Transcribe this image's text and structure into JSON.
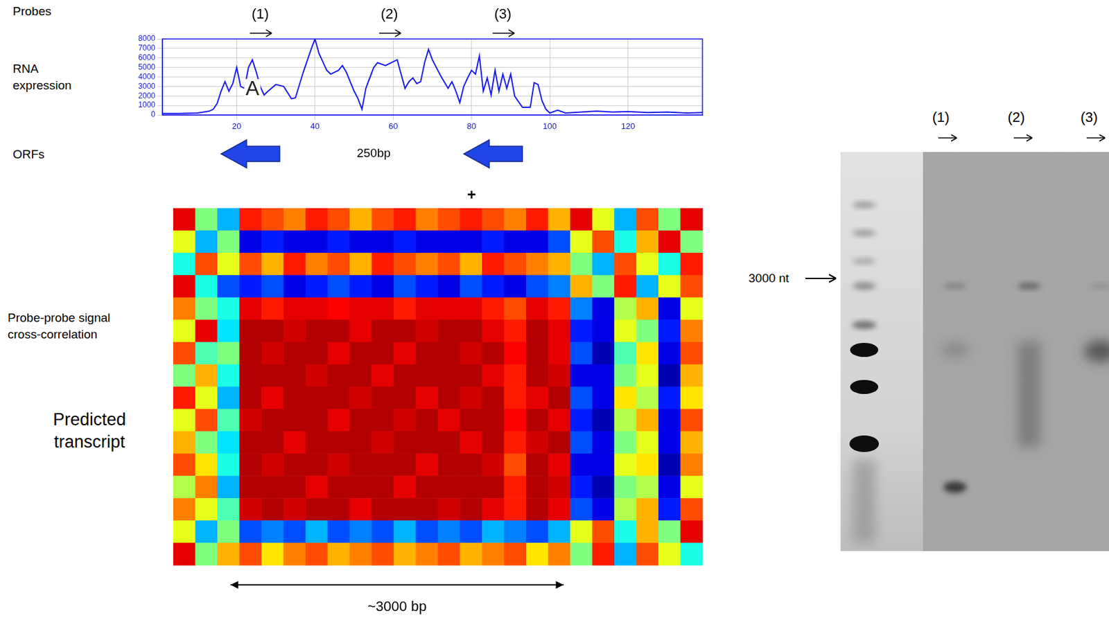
{
  "labels": {
    "probes": "Probes",
    "rna_expression": "RNA expression",
    "orfs": "ORFs",
    "cross_correlation": "Probe-probe signal cross-correlation",
    "predicted_transcript": "Predicted transcript"
  },
  "chart_data": [
    {
      "type": "line",
      "title": "RNA expression",
      "x": [
        1,
        5,
        10,
        13,
        14,
        15,
        16,
        17,
        18,
        19,
        20,
        21,
        22,
        23,
        24,
        25,
        26,
        27,
        28,
        30,
        32,
        34,
        35,
        37,
        39,
        40,
        41,
        43,
        44,
        46,
        47,
        48,
        50,
        51,
        52,
        53,
        55,
        56,
        58,
        60,
        61,
        62,
        63,
        64,
        65,
        66,
        67,
        68,
        69,
        70,
        71,
        72,
        73,
        74,
        75,
        76,
        77,
        78,
        79,
        80,
        81,
        82,
        83,
        84,
        85,
        86,
        87,
        88,
        89,
        90,
        91,
        93,
        95,
        96,
        97,
        98,
        99,
        100,
        102,
        104,
        108,
        112,
        116,
        120,
        125,
        130,
        135,
        139
      ],
      "values": [
        150,
        150,
        200,
        400,
        600,
        1200,
        2500,
        3500,
        2500,
        3300,
        5000,
        3000,
        2800,
        5000,
        5800,
        4500,
        3000,
        2100,
        2500,
        3200,
        3000,
        1700,
        1800,
        4500,
        6900,
        8000,
        6500,
        4700,
        4300,
        4700,
        5200,
        4500,
        2500,
        1700,
        600,
        2800,
        5000,
        5500,
        5200,
        5600,
        5800,
        4300,
        2800,
        3500,
        3900,
        3300,
        3500,
        5500,
        6900,
        5800,
        5000,
        4200,
        3500,
        2800,
        3500,
        2500,
        1300,
        3000,
        3900,
        4700,
        4300,
        6200,
        2500,
        3900,
        2100,
        4700,
        2500,
        4300,
        2800,
        4300,
        2000,
        800,
        800,
        3400,
        3200,
        1500,
        600,
        200,
        500,
        200,
        300,
        400,
        300,
        350,
        250,
        300,
        200,
        250
      ],
      "color": "#1a1aee",
      "xlim": [
        1,
        139
      ],
      "xticks": [
        20,
        40,
        60,
        80,
        100,
        120
      ],
      "ylim": [
        0,
        8000
      ],
      "yticks": [
        0,
        1000,
        2000,
        3000,
        4000,
        5000,
        6000,
        7000,
        8000
      ],
      "grid": true,
      "annotations": [
        {
          "text": "A",
          "x": 24,
          "y": 2700
        }
      ],
      "probes": [
        {
          "label": "(1)",
          "x": 26
        },
        {
          "label": "(2)",
          "x": 59
        },
        {
          "label": "(3)",
          "x": 88
        }
      ],
      "orfs": [
        {
          "start": 31,
          "end": 16
        },
        {
          "start": 93,
          "end": 78
        }
      ],
      "orf_label": {
        "text": "250bp",
        "x": 55
      },
      "marks": [
        {
          "text": "+",
          "x": 80
        }
      ]
    },
    {
      "type": "heatmap",
      "title": "Probe-probe signal cross-correlation",
      "zlim": [
        0,
        1
      ],
      "tick_labels": false,
      "cells": [
        [
          0.9,
          0.5,
          0.3,
          0.85,
          0.8,
          0.75,
          0.85,
          0.8,
          0.7,
          0.8,
          0.85,
          0.75,
          0.8,
          0.85,
          0.8,
          0.75,
          0.85,
          0.7,
          0.9,
          0.6,
          0.3,
          0.8,
          0.5,
          0.9
        ],
        [
          0.6,
          0.3,
          0.5,
          0.1,
          0.15,
          0.1,
          0.1,
          0.15,
          0.1,
          0.1,
          0.15,
          0.1,
          0.1,
          0.1,
          0.15,
          0.1,
          0.1,
          0.2,
          0.6,
          0.8,
          0.4,
          0.7,
          0.9,
          0.5
        ],
        [
          0.4,
          0.8,
          0.6,
          0.8,
          0.7,
          0.85,
          0.75,
          0.8,
          0.7,
          0.85,
          0.8,
          0.75,
          0.8,
          0.7,
          0.85,
          0.8,
          0.75,
          0.7,
          0.5,
          0.3,
          0.8,
          0.6,
          0.4,
          0.85
        ],
        [
          0.9,
          0.4,
          0.2,
          0.15,
          0.2,
          0.1,
          0.15,
          0.2,
          0.15,
          0.1,
          0.2,
          0.15,
          0.1,
          0.2,
          0.15,
          0.1,
          0.2,
          0.25,
          0.7,
          0.5,
          0.85,
          0.3,
          0.6,
          0.8
        ],
        [
          0.75,
          0.5,
          0.4,
          0.9,
          0.85,
          0.9,
          0.9,
          0.88,
          0.9,
          0.9,
          0.85,
          0.9,
          0.9,
          0.9,
          0.85,
          0.8,
          0.9,
          0.85,
          0.25,
          0.1,
          0.55,
          0.7,
          0.1,
          0.6
        ],
        [
          0.6,
          0.9,
          0.35,
          0.95,
          0.95,
          0.92,
          0.95,
          0.95,
          0.9,
          0.95,
          0.95,
          0.92,
          0.95,
          0.95,
          0.9,
          0.85,
          0.95,
          0.9,
          0.15,
          0.1,
          0.6,
          0.5,
          0.15,
          0.75
        ],
        [
          0.8,
          0.45,
          0.5,
          0.95,
          0.92,
          0.95,
          0.95,
          0.9,
          0.95,
          0.95,
          0.9,
          0.95,
          0.95,
          0.92,
          0.95,
          0.88,
          0.95,
          0.9,
          0.2,
          0.05,
          0.45,
          0.65,
          0.1,
          0.8
        ],
        [
          0.5,
          0.7,
          0.4,
          0.95,
          0.95,
          0.95,
          0.92,
          0.95,
          0.95,
          0.9,
          0.95,
          0.95,
          0.95,
          0.95,
          0.9,
          0.85,
          0.95,
          0.92,
          0.1,
          0.1,
          0.5,
          0.6,
          0.05,
          0.7
        ],
        [
          0.85,
          0.6,
          0.3,
          0.95,
          0.9,
          0.95,
          0.95,
          0.95,
          0.92,
          0.95,
          0.95,
          0.9,
          0.95,
          0.92,
          0.95,
          0.85,
          0.9,
          0.95,
          0.2,
          0.1,
          0.65,
          0.55,
          0.15,
          0.65
        ],
        [
          0.6,
          0.8,
          0.45,
          0.92,
          0.95,
          0.95,
          0.95,
          0.9,
          0.95,
          0.95,
          0.92,
          0.95,
          0.9,
          0.95,
          0.95,
          0.88,
          0.95,
          0.9,
          0.15,
          0.05,
          0.55,
          0.7,
          0.1,
          0.8
        ],
        [
          0.7,
          0.5,
          0.35,
          0.95,
          0.95,
          0.9,
          0.95,
          0.95,
          0.95,
          0.92,
          0.95,
          0.95,
          0.95,
          0.9,
          0.95,
          0.85,
          0.92,
          0.95,
          0.2,
          0.1,
          0.5,
          0.6,
          0.1,
          0.7
        ],
        [
          0.8,
          0.65,
          0.4,
          0.95,
          0.92,
          0.95,
          0.95,
          0.92,
          0.95,
          0.95,
          0.95,
          0.9,
          0.95,
          0.95,
          0.92,
          0.8,
          0.95,
          0.9,
          0.1,
          0.1,
          0.6,
          0.65,
          0.05,
          0.75
        ],
        [
          0.55,
          0.75,
          0.3,
          0.95,
          0.95,
          0.95,
          0.9,
          0.95,
          0.95,
          0.95,
          0.9,
          0.95,
          0.95,
          0.95,
          0.95,
          0.85,
          0.95,
          0.92,
          0.15,
          0.05,
          0.5,
          0.55,
          0.1,
          0.6
        ],
        [
          0.75,
          0.6,
          0.45,
          0.92,
          0.95,
          0.92,
          0.95,
          0.95,
          0.9,
          0.95,
          0.95,
          0.95,
          0.92,
          0.95,
          0.9,
          0.85,
          0.95,
          0.9,
          0.2,
          0.1,
          0.55,
          0.7,
          0.15,
          0.8
        ],
        [
          0.6,
          0.3,
          0.5,
          0.2,
          0.25,
          0.2,
          0.3,
          0.2,
          0.25,
          0.2,
          0.3,
          0.2,
          0.25,
          0.2,
          0.3,
          0.25,
          0.2,
          0.3,
          0.6,
          0.8,
          0.4,
          0.7,
          0.5,
          0.9
        ],
        [
          0.9,
          0.5,
          0.7,
          0.8,
          0.65,
          0.75,
          0.8,
          0.7,
          0.75,
          0.8,
          0.7,
          0.75,
          0.8,
          0.7,
          0.75,
          0.8,
          0.65,
          0.75,
          0.5,
          0.85,
          0.3,
          0.8,
          0.6,
          0.4
        ]
      ],
      "span": {
        "text": "~3000 bp",
        "from": 2.6,
        "to": 17.7
      }
    }
  ],
  "blot": {
    "marker": "3000 nt",
    "lanes": [
      "(1)",
      "(2)",
      "(3)"
    ]
  }
}
